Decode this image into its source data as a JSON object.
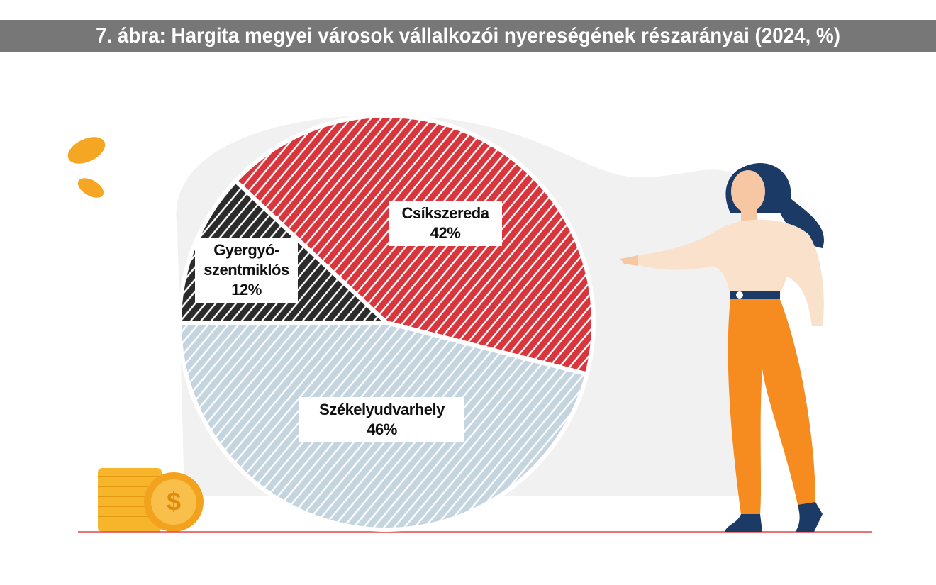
{
  "chart_data": {
    "type": "pie",
    "title": "7. ábra: Hargita megyei városok vállalkozói nyereségének részarányai (2024, %)",
    "categories": [
      "Gyergyó-szentmiklós",
      "Csíkszereda",
      "Székelyudvarhely"
    ],
    "values": [
      12,
      42,
      46
    ],
    "value_labels": [
      "12%",
      "42%",
      "46%"
    ],
    "colors": [
      "#2b2b2b",
      "#d8353c",
      "#c4d5e0"
    ]
  }
}
